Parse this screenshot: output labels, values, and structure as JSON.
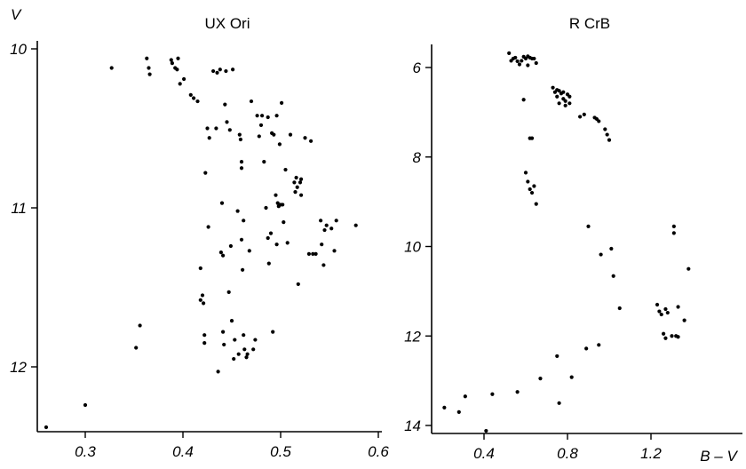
{
  "chart_data": [
    {
      "type": "scatter",
      "title": "UX Ori",
      "ylabel": "V",
      "xlabel": "",
      "y_inverted": true,
      "xlim": [
        0.25,
        0.6
      ],
      "ylim": [
        10,
        12.45
      ],
      "xticks": [
        "0.3",
        "0.4",
        "0.5",
        "0.6"
      ],
      "yticks": [
        "10",
        "11",
        "12"
      ],
      "points": [
        [
          0.26,
          12.38
        ],
        [
          0.3,
          12.24
        ],
        [
          0.327,
          10.12
        ],
        [
          0.352,
          11.88
        ],
        [
          0.356,
          11.74
        ],
        [
          0.363,
          10.06
        ],
        [
          0.365,
          10.12
        ],
        [
          0.366,
          10.16
        ],
        [
          0.388,
          10.07
        ],
        [
          0.389,
          10.09
        ],
        [
          0.392,
          10.12
        ],
        [
          0.394,
          10.13
        ],
        [
          0.395,
          10.06
        ],
        [
          0.397,
          10.22
        ],
        [
          0.401,
          10.19
        ],
        [
          0.408,
          10.29
        ],
        [
          0.411,
          10.31
        ],
        [
          0.415,
          10.33
        ],
        [
          0.418,
          11.38
        ],
        [
          0.418,
          11.58
        ],
        [
          0.42,
          11.55
        ],
        [
          0.421,
          11.6
        ],
        [
          0.422,
          11.8
        ],
        [
          0.422,
          11.85
        ],
        [
          0.423,
          10.78
        ],
        [
          0.425,
          10.5
        ],
        [
          0.426,
          11.12
        ],
        [
          0.427,
          10.56
        ],
        [
          0.431,
          10.14
        ],
        [
          0.434,
          10.5
        ],
        [
          0.435,
          10.15
        ],
        [
          0.436,
          12.03
        ],
        [
          0.438,
          10.13
        ],
        [
          0.439,
          11.28
        ],
        [
          0.44,
          10.97
        ],
        [
          0.441,
          11.3
        ],
        [
          0.441,
          11.78
        ],
        [
          0.442,
          11.86
        ],
        [
          0.443,
          10.35
        ],
        [
          0.444,
          10.14
        ],
        [
          0.445,
          10.46
        ],
        [
          0.447,
          11.53
        ],
        [
          0.448,
          10.51
        ],
        [
          0.449,
          11.24
        ],
        [
          0.45,
          11.71
        ],
        [
          0.451,
          10.13
        ],
        [
          0.452,
          11.95
        ],
        [
          0.453,
          11.83
        ],
        [
          0.456,
          11.02
        ],
        [
          0.457,
          11.92
        ],
        [
          0.458,
          10.54
        ],
        [
          0.459,
          10.57
        ],
        [
          0.46,
          10.71
        ],
        [
          0.46,
          10.75
        ],
        [
          0.46,
          11.2
        ],
        [
          0.461,
          11.39
        ],
        [
          0.462,
          11.08
        ],
        [
          0.462,
          11.8
        ],
        [
          0.463,
          11.89
        ],
        [
          0.465,
          11.94
        ],
        [
          0.466,
          11.92
        ],
        [
          0.468,
          11.27
        ],
        [
          0.47,
          10.33
        ],
        [
          0.472,
          11.89
        ],
        [
          0.474,
          11.83
        ],
        [
          0.476,
          10.42
        ],
        [
          0.478,
          10.55
        ],
        [
          0.48,
          10.48
        ],
        [
          0.481,
          10.42
        ],
        [
          0.483,
          10.71
        ],
        [
          0.485,
          11.0
        ],
        [
          0.487,
          11.19
        ],
        [
          0.487,
          10.43
        ],
        [
          0.488,
          11.35
        ],
        [
          0.49,
          11.16
        ],
        [
          0.491,
          10.53
        ],
        [
          0.492,
          11.78
        ],
        [
          0.493,
          10.54
        ],
        [
          0.495,
          10.92
        ],
        [
          0.496,
          10.42
        ],
        [
          0.496,
          11.23
        ],
        [
          0.497,
          10.97
        ],
        [
          0.498,
          10.99
        ],
        [
          0.499,
          10.6
        ],
        [
          0.5,
          10.98
        ],
        [
          0.501,
          10.34
        ],
        [
          0.502,
          10.98
        ],
        [
          0.503,
          11.09
        ],
        [
          0.505,
          10.76
        ],
        [
          0.507,
          11.22
        ],
        [
          0.51,
          10.54
        ],
        [
          0.514,
          10.84
        ],
        [
          0.515,
          10.9
        ],
        [
          0.516,
          10.81
        ],
        [
          0.517,
          10.87
        ],
        [
          0.518,
          11.48
        ],
        [
          0.52,
          10.84
        ],
        [
          0.521,
          10.92
        ],
        [
          0.521,
          10.82
        ],
        [
          0.525,
          10.56
        ],
        [
          0.529,
          11.29
        ],
        [
          0.531,
          10.58
        ],
        [
          0.533,
          11.29
        ],
        [
          0.536,
          11.29
        ],
        [
          0.541,
          11.08
        ],
        [
          0.542,
          11.23
        ],
        [
          0.544,
          11.36
        ],
        [
          0.545,
          11.14
        ],
        [
          0.547,
          11.11
        ],
        [
          0.552,
          11.13
        ],
        [
          0.555,
          11.27
        ],
        [
          0.557,
          11.08
        ],
        [
          0.577,
          11.11
        ]
      ]
    },
    {
      "type": "scatter",
      "title": "R CrB",
      "ylabel": "",
      "xlabel": "B – V",
      "y_inverted": true,
      "xlim": [
        0.2,
        1.4
      ],
      "ylim": [
        5.5,
        14.4
      ],
      "xticks": [
        "0.4",
        "0.8",
        "1.2"
      ],
      "yticks": [
        "6",
        "8",
        "10",
        "12",
        "14"
      ],
      "points": [
        [
          0.21,
          13.6
        ],
        [
          0.28,
          13.7
        ],
        [
          0.31,
          13.35
        ],
        [
          0.41,
          14.12
        ],
        [
          0.44,
          13.3
        ],
        [
          0.52,
          5.68
        ],
        [
          0.53,
          5.85
        ],
        [
          0.54,
          5.8
        ],
        [
          0.55,
          5.78
        ],
        [
          0.56,
          5.86
        ],
        [
          0.57,
          5.93
        ],
        [
          0.58,
          5.85
        ],
        [
          0.59,
          5.76
        ],
        [
          0.59,
          6.72
        ],
        [
          0.6,
          5.8
        ],
        [
          0.6,
          8.35
        ],
        [
          0.61,
          5.75
        ],
        [
          0.61,
          5.95
        ],
        [
          0.61,
          8.55
        ],
        [
          0.62,
          5.78
        ],
        [
          0.62,
          7.58
        ],
        [
          0.62,
          8.72
        ],
        [
          0.63,
          5.8
        ],
        [
          0.63,
          7.58
        ],
        [
          0.63,
          8.8
        ],
        [
          0.64,
          5.8
        ],
        [
          0.64,
          8.65
        ],
        [
          0.65,
          5.9
        ],
        [
          0.65,
          9.05
        ],
        [
          0.56,
          13.25
        ],
        [
          0.67,
          12.95
        ],
        [
          0.73,
          6.45
        ],
        [
          0.74,
          6.55
        ],
        [
          0.75,
          6.65
        ],
        [
          0.75,
          6.5
        ],
        [
          0.75,
          12.45
        ],
        [
          0.76,
          6.52
        ],
        [
          0.76,
          6.8
        ],
        [
          0.76,
          13.5
        ],
        [
          0.77,
          6.58
        ],
        [
          0.78,
          6.7
        ],
        [
          0.78,
          6.55
        ],
        [
          0.79,
          6.85
        ],
        [
          0.79,
          6.75
        ],
        [
          0.8,
          6.6
        ],
        [
          0.81,
          6.65
        ],
        [
          0.81,
          6.8
        ],
        [
          0.82,
          12.92
        ],
        [
          0.86,
          7.1
        ],
        [
          0.88,
          7.05
        ],
        [
          0.89,
          12.28
        ],
        [
          0.9,
          9.55
        ],
        [
          0.93,
          7.12
        ],
        [
          0.94,
          7.15
        ],
        [
          0.95,
          7.2
        ],
        [
          0.95,
          12.2
        ],
        [
          0.96,
          10.18
        ],
        [
          0.98,
          7.38
        ],
        [
          0.99,
          7.5
        ],
        [
          1.0,
          7.62
        ],
        [
          1.01,
          10.05
        ],
        [
          1.02,
          10.66
        ],
        [
          1.05,
          11.38
        ],
        [
          1.23,
          11.3
        ],
        [
          1.24,
          11.45
        ],
        [
          1.25,
          11.52
        ],
        [
          1.26,
          11.95
        ],
        [
          1.27,
          11.4
        ],
        [
          1.27,
          12.05
        ],
        [
          1.28,
          11.48
        ],
        [
          1.3,
          12.0
        ],
        [
          1.31,
          9.55
        ],
        [
          1.31,
          9.7
        ],
        [
          1.32,
          12.0
        ],
        [
          1.33,
          12.02
        ],
        [
          1.33,
          11.35
        ],
        [
          1.36,
          11.65
        ],
        [
          1.38,
          10.5
        ]
      ]
    }
  ]
}
